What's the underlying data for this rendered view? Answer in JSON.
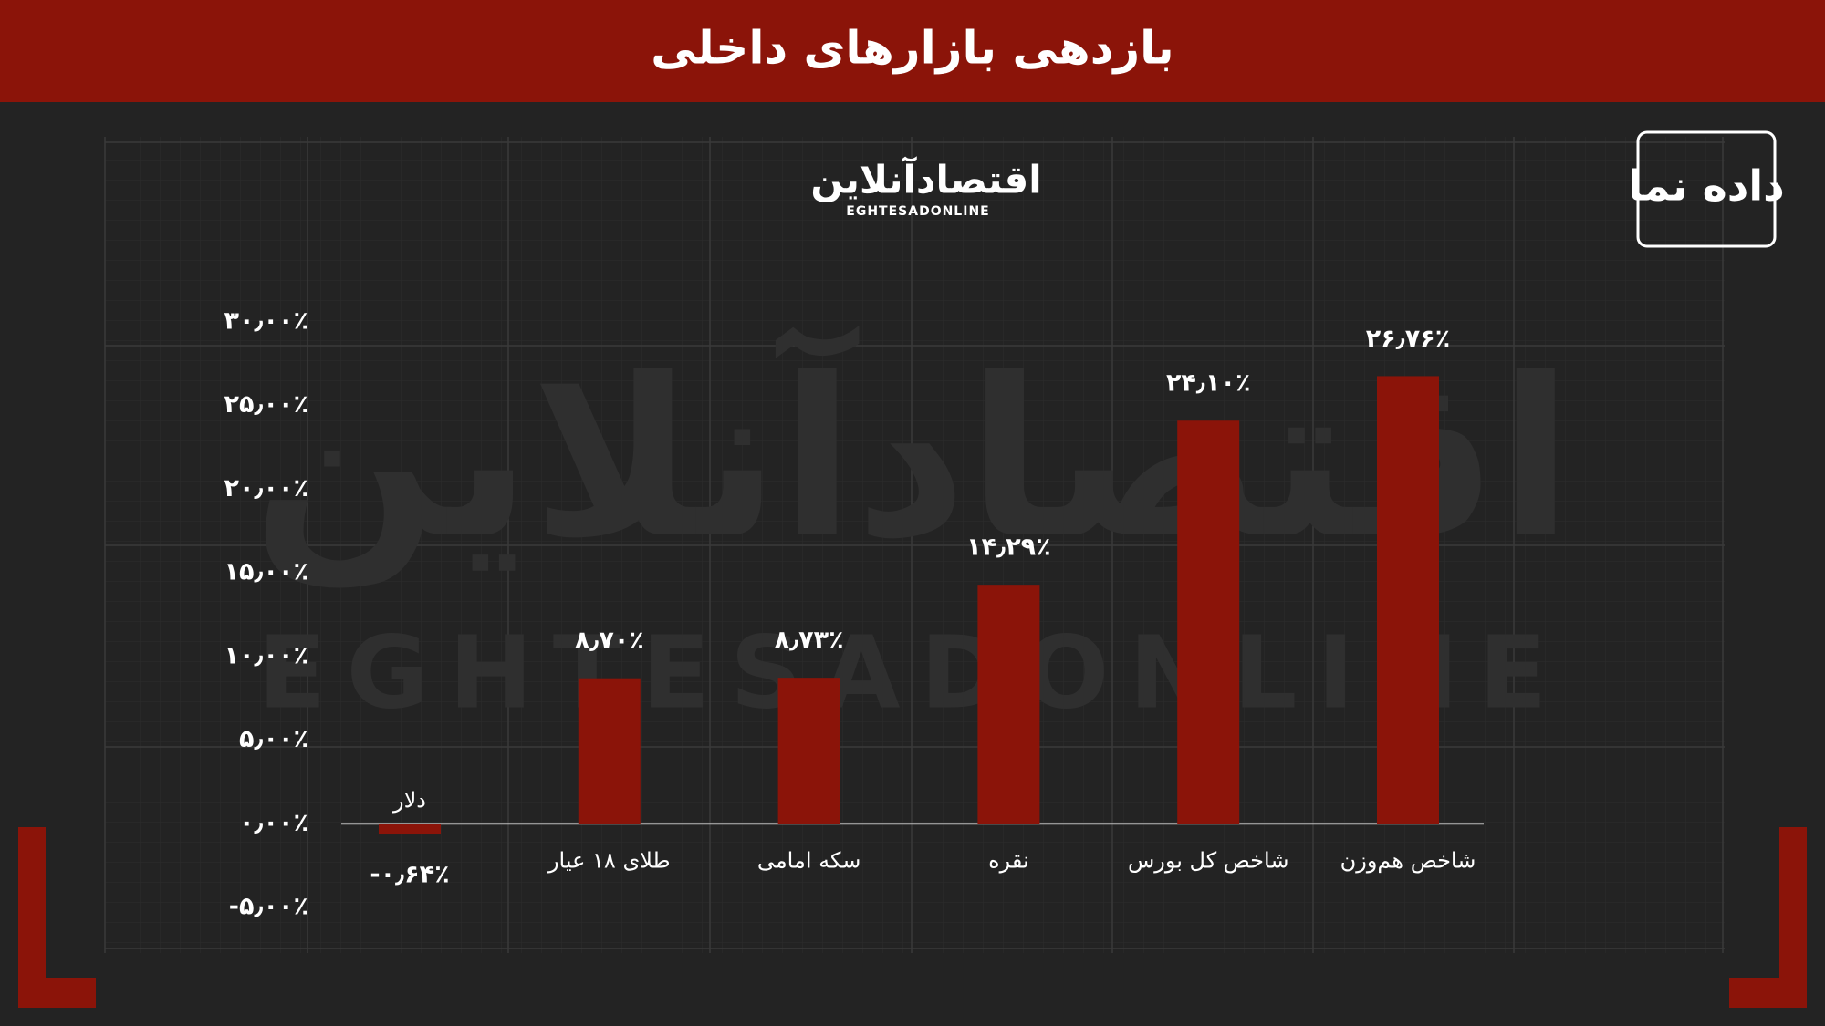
{
  "branding": {
    "logo_text": "اقتصادآنلاین",
    "logo_latin": "EGHTESADONLINE",
    "brand": "داده نما"
  },
  "chart_data": {
    "type": "bar",
    "title": "بازدهی بازارهای داخلی",
    "categories": [
      "دلار",
      "طلای ۱۸ عیار",
      "سکه امامی",
      "نقره",
      "شاخص کل بورس",
      "شاخص هم‌وزن"
    ],
    "values": [
      -0.64,
      8.7,
      8.73,
      14.29,
      24.1,
      26.76
    ],
    "value_labels": [
      "-۰٫۶۴٪",
      "۸٫۷۰٪",
      "۸٫۷۳٪",
      "۱۴٫۲۹٪",
      "۲۴٫۱۰٪",
      "۲۶٫۷۶٪"
    ],
    "color": "#8b1409",
    "ylim": [
      -5,
      30
    ],
    "yticks": [
      {
        "value": -5,
        "label": "-۵٫۰۰٪"
      },
      {
        "value": 0,
        "label": "۰٫۰۰٪"
      },
      {
        "value": 5,
        "label": "۵٫۰۰٪"
      },
      {
        "value": 10,
        "label": "۱۰٫۰۰٪"
      },
      {
        "value": 15,
        "label": "۱۵٫۰۰٪"
      },
      {
        "value": 20,
        "label": "۲۰٫۰۰٪"
      },
      {
        "value": 25,
        "label": "۲۵٫۰۰٪"
      },
      {
        "value": 30,
        "label": "۳۰٫۰۰٪"
      }
    ],
    "grid": false
  }
}
